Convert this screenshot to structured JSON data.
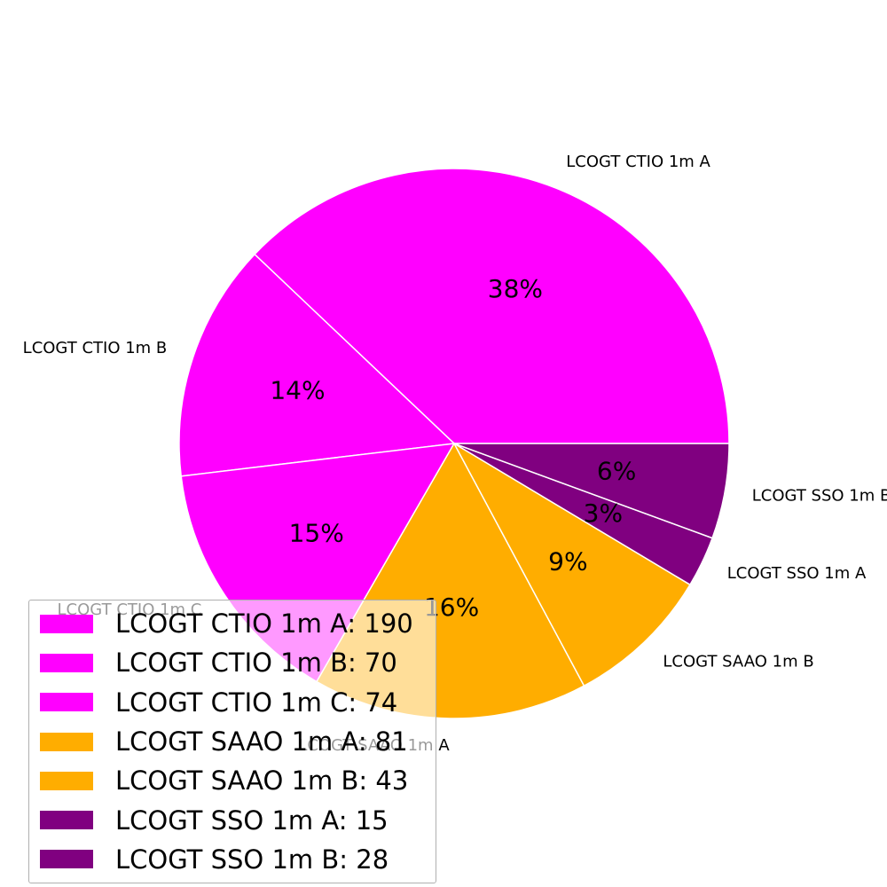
{
  "chart_data": {
    "type": "pie",
    "slices": [
      {
        "label": "LCOGT CTIO 1m A",
        "value": 190,
        "pct_label": "38%",
        "legend": "LCOGT CTIO 1m A: 190",
        "color": "#ff00ff"
      },
      {
        "label": "LCOGT CTIO 1m B",
        "value": 70,
        "pct_label": "14%",
        "legend": "LCOGT CTIO 1m B: 70",
        "color": "#ff00ff"
      },
      {
        "label": "LCOGT CTIO 1m C",
        "value": 74,
        "pct_label": "15%",
        "legend": "LCOGT CTIO 1m C: 74",
        "color": "#ff00ff"
      },
      {
        "label": "LCOGT SAAO 1m A",
        "value": 81,
        "pct_label": "16%",
        "legend": "LCOGT SAAO 1m A: 81",
        "color": "#ffad00"
      },
      {
        "label": "LCOGT SAAO 1m B",
        "value": 43,
        "pct_label": "9%",
        "legend": "LCOGT SAAO 1m B: 43",
        "color": "#ffad00"
      },
      {
        "label": "LCOGT SSO 1m A",
        "value": 15,
        "pct_label": "3%",
        "legend": "LCOGT SSO 1m A: 15",
        "color": "#800080"
      },
      {
        "label": "LCOGT SSO 1m B",
        "value": 28,
        "pct_label": "6%",
        "legend": "LCOGT SSO 1m B: 28",
        "color": "#800080"
      }
    ],
    "start_direction": "counterclockwise from 3 o'clock",
    "legend_position": "lower-left"
  }
}
